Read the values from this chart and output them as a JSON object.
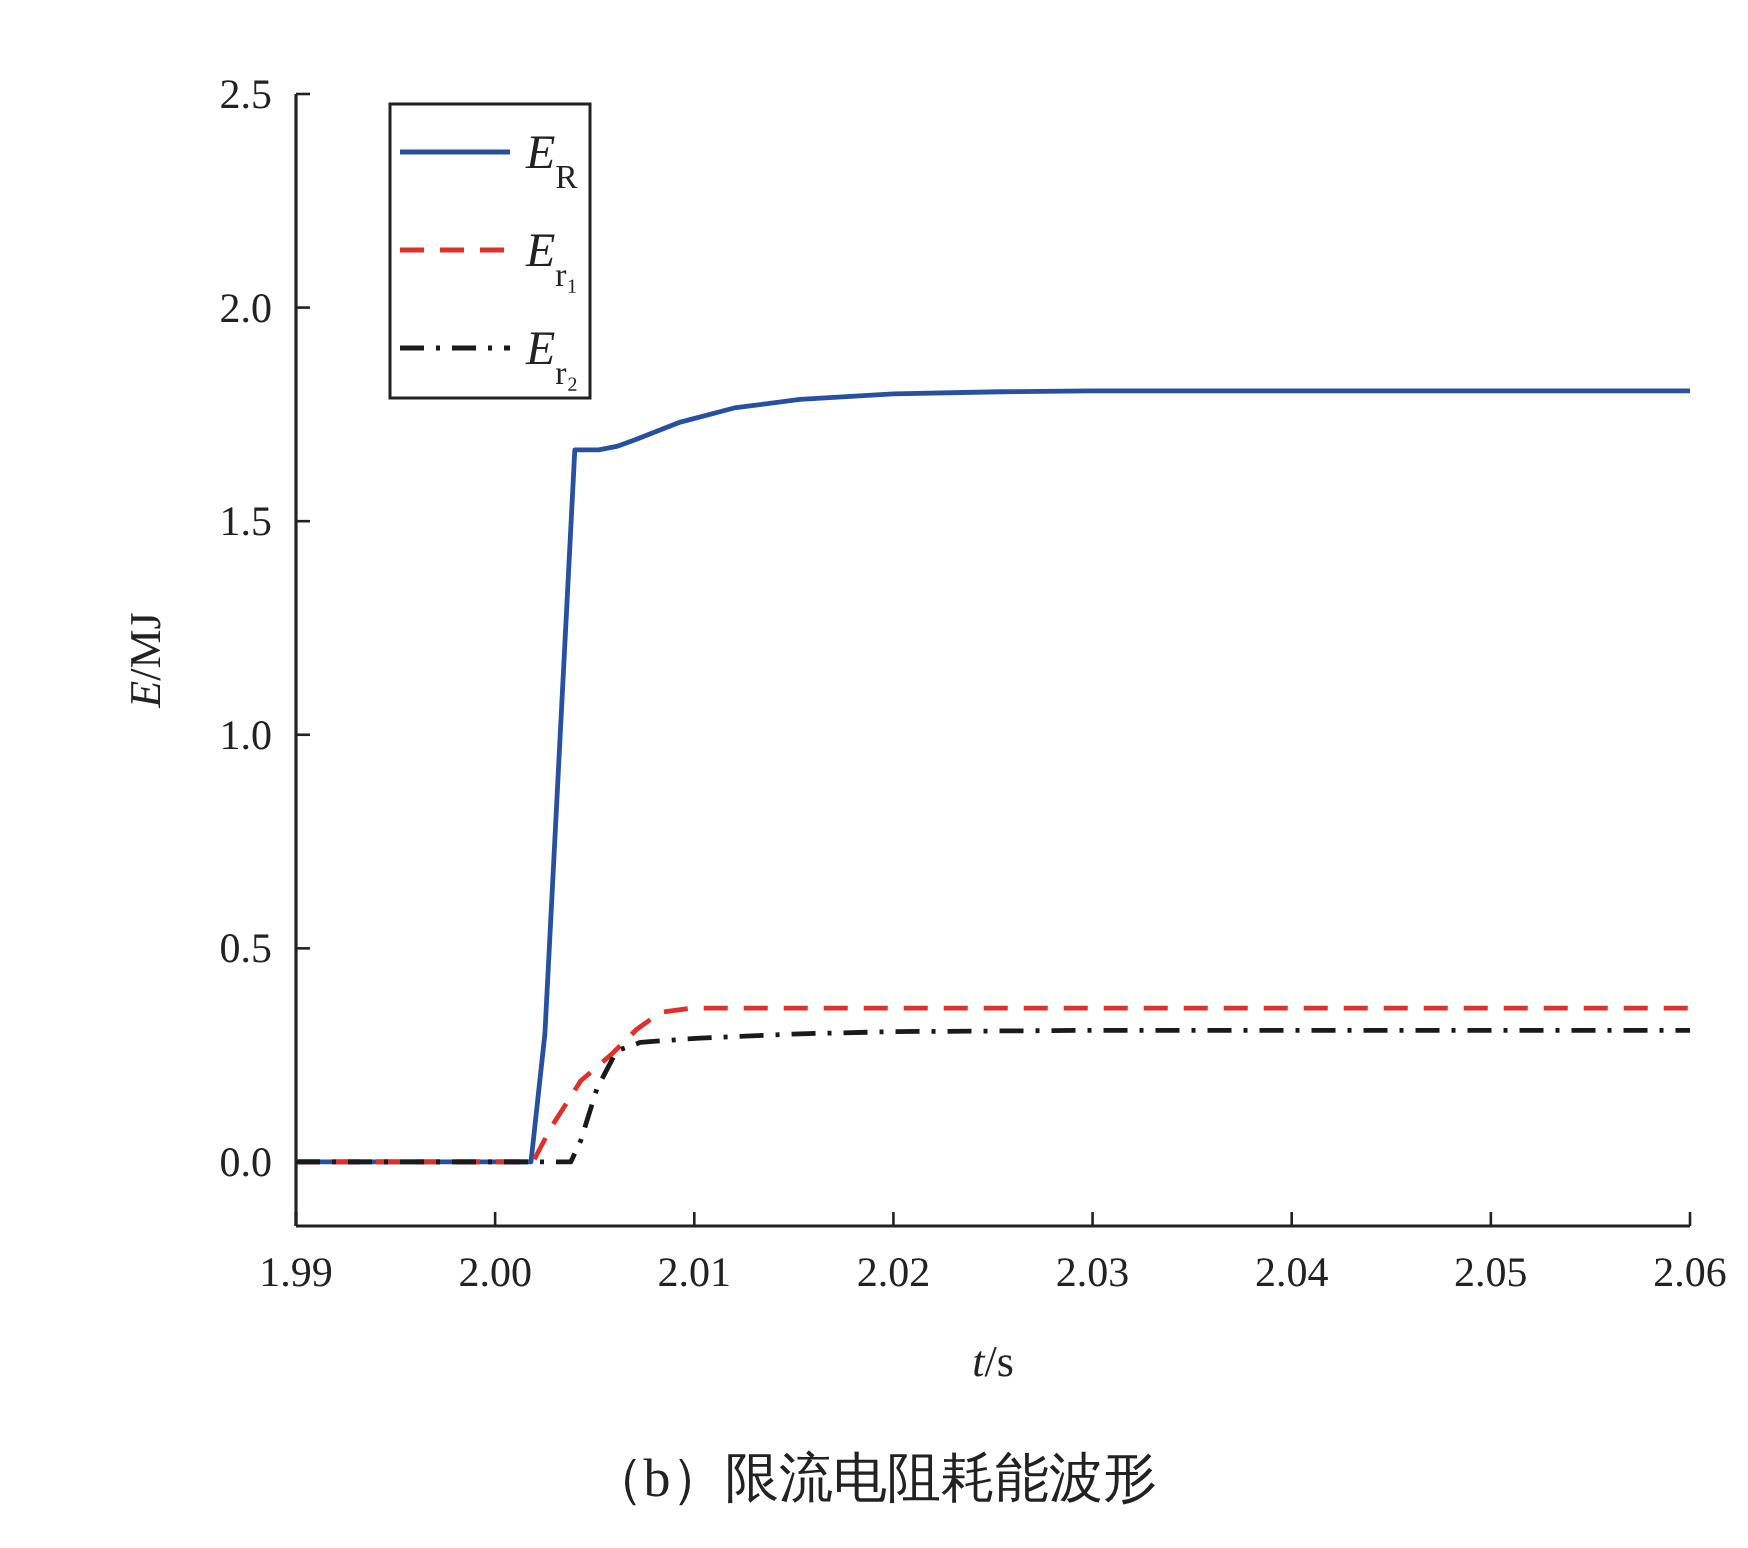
{
  "chart_data": {
    "type": "line",
    "xlabel": "t/s",
    "ylabel": "E/MJ",
    "annotations": [
      "（b）限流电阻耗能波形"
    ],
    "xlim": [
      1.99,
      2.06
    ],
    "ylim": [
      -0.15,
      2.5
    ],
    "xticks": [
      1.99,
      {
        "value": 2.0,
        "label": "2.00"
      },
      2.01,
      2.02,
      2.03,
      2.04,
      2.05,
      2.06
    ],
    "yticks": [
      {
        "value": 0,
        "label": "0.0"
      },
      0.5,
      {
        "value": 1,
        "label": "1.0"
      },
      1.5,
      {
        "value": 2,
        "label": "2.0"
      },
      2.5
    ],
    "grid": false,
    "legend": "top left",
    "series": [
      {
        "name": "E$_{R}$",
        "color": "#2850a0",
        "line_style": "solid",
        "x": [
          1.99,
          2.0018,
          2.0025,
          2.004,
          2.0052,
          2.0061,
          2.007,
          2.0093,
          2.012,
          2.0153,
          2.02,
          2.0254,
          2.03,
          2.06
        ],
        "values": [
          0,
          0,
          0.3,
          1.667,
          1.667,
          1.675,
          1.69,
          1.732,
          1.765,
          1.785,
          1.798,
          1.803,
          1.805,
          1.805
        ]
      },
      {
        "name": "E$_{r₁}$",
        "color": "#e0302a",
        "line_style": "dashed",
        "x": [
          1.99,
          2.0019,
          2.0028,
          2.0043,
          2.0058,
          2.0071,
          2.0083,
          2.0098,
          2.06
        ],
        "values": [
          0,
          0,
          0.08,
          0.19,
          0.25,
          0.31,
          0.35,
          0.36,
          0.36
        ]
      },
      {
        "name": "E$_{r₂}$",
        "color": "#1a1a1a",
        "line_style": "dashdot",
        "x": [
          1.99,
          2.0038,
          2.0043,
          2.0051,
          2.0061,
          2.0073,
          2.0103,
          2.0153,
          2.02,
          2.03,
          2.06
        ],
        "values": [
          0,
          0,
          0.05,
          0.17,
          0.26,
          0.28,
          0.29,
          0.3,
          0.305,
          0.308,
          0.308
        ]
      }
    ]
  }
}
